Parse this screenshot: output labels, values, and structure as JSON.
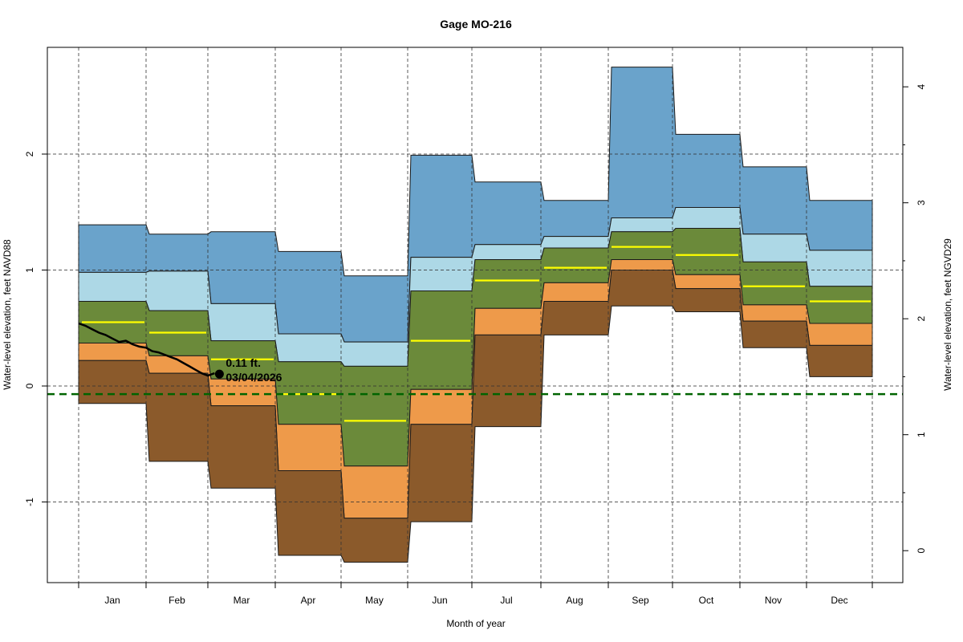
{
  "chart_data": {
    "type": "area",
    "title": "Gage MO-216",
    "xlabel": "Month of year",
    "ylabel": "Water-level elevation, feet NAVD88",
    "ylabel_right": "Water-level elevation, feet NGVD29",
    "ylim": [
      -1.6,
      2.95
    ],
    "yticks": [
      -1,
      0,
      1,
      2
    ],
    "yticks_right": [
      0,
      1,
      2,
      3,
      4
    ],
    "right_axis_offset": 1.42,
    "grid": true,
    "categories": [
      "Jan",
      "Feb",
      "Mar",
      "Apr",
      "May",
      "Jun",
      "Jul",
      "Aug",
      "Sep",
      "Oct",
      "Nov",
      "Dec"
    ],
    "band_colors": {
      "max_to_p90": "#6aa3cb",
      "p90_to_p75": "#add8e6",
      "p75_to_p25": "#6b8a3a",
      "p25_to_p10": "#ee9a4a",
      "p10_to_min": "#8b5a2b",
      "median": "#ffff00",
      "reference": "#006400",
      "current": "#000000"
    },
    "series": [
      {
        "name": "max",
        "values": [
          1.39,
          1.31,
          1.33,
          1.16,
          0.95,
          1.99,
          1.76,
          1.6,
          2.75,
          2.17,
          1.89,
          1.6
        ]
      },
      {
        "name": "p90",
        "values": [
          0.98,
          0.99,
          0.71,
          0.45,
          0.38,
          1.11,
          1.22,
          1.29,
          1.45,
          1.54,
          1.31,
          1.17
        ]
      },
      {
        "name": "p75",
        "values": [
          0.73,
          0.65,
          0.39,
          0.21,
          0.17,
          0.82,
          1.09,
          1.19,
          1.33,
          1.36,
          1.07,
          0.86
        ]
      },
      {
        "name": "median",
        "values": [
          0.55,
          0.46,
          0.23,
          -0.07,
          -0.3,
          0.39,
          0.91,
          1.02,
          1.2,
          1.13,
          0.86,
          0.73
        ]
      },
      {
        "name": "p25",
        "values": [
          0.37,
          0.26,
          0.06,
          -0.33,
          -0.69,
          -0.03,
          0.67,
          0.89,
          1.09,
          0.96,
          0.7,
          0.54
        ]
      },
      {
        "name": "p10",
        "values": [
          0.22,
          0.11,
          -0.17,
          -0.73,
          -1.14,
          -0.33,
          0.44,
          0.73,
          1.0,
          0.84,
          0.56,
          0.35
        ]
      },
      {
        "name": "min",
        "values": [
          -0.15,
          -0.65,
          -0.88,
          -1.46,
          -1.52,
          -1.17,
          -0.35,
          0.44,
          0.69,
          0.64,
          0.33,
          0.08
        ]
      }
    ],
    "reference_line": {
      "name": "reference level",
      "value": -0.07
    },
    "current_series": {
      "name": "current year",
      "x_month_frac": [
        0.0,
        0.1,
        0.2,
        0.3,
        0.4,
        0.5,
        0.6,
        0.7,
        0.8,
        0.9,
        1.0,
        1.1,
        1.2,
        1.3,
        1.4,
        1.5,
        1.6,
        1.7,
        1.8,
        1.9,
        2.0,
        2.1
      ],
      "values": [
        0.54,
        0.52,
        0.49,
        0.46,
        0.44,
        0.41,
        0.38,
        0.39,
        0.36,
        0.34,
        0.33,
        0.3,
        0.29,
        0.27,
        0.25,
        0.23,
        0.2,
        0.17,
        0.14,
        0.11,
        0.09,
        0.11
      ]
    },
    "current_point": {
      "value": 0.11,
      "label_value": "0.11 ft.",
      "label_date": "03/04/2026",
      "x_month_frac": 2.1
    }
  }
}
